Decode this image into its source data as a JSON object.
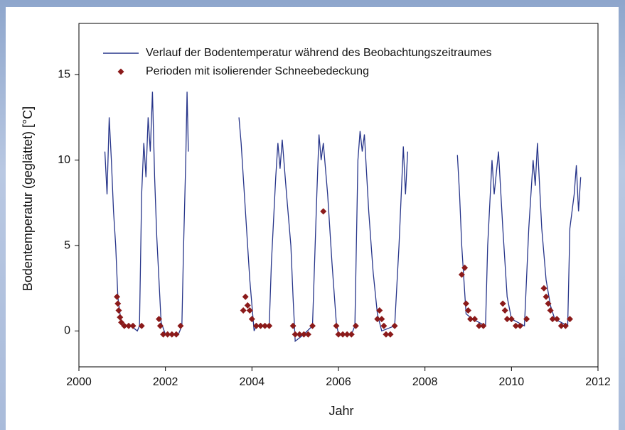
{
  "chart_data": {
    "type": "line",
    "xlabel": "Jahr",
    "ylabel": "Bodentemperatur (geglättet) [°C]",
    "xlim": [
      2000,
      2012
    ],
    "xticks": [
      2000,
      2002,
      2004,
      2006,
      2008,
      2010,
      2012
    ],
    "ylim": [
      -2.1,
      18
    ],
    "yticks": [
      0,
      5,
      10,
      15
    ],
    "legend": "top",
    "series": [
      {
        "name": "Verlauf der Bodentemperatur während des Beobachtungszeitraumes",
        "color": "#27358a",
        "type": "line",
        "x": [
          2000.6,
          2000.65,
          2000.7,
          2000.75,
          2000.8,
          2000.85,
          2000.9,
          2000.95,
          2001.0,
          2001.2,
          2001.35,
          2001.4,
          2001.45,
          2001.5,
          2001.55,
          2001.6,
          2001.65,
          2001.7,
          2001.75,
          2001.8,
          2001.85,
          2001.9,
          2002.0,
          2002.3,
          2002.38,
          2002.42,
          2002.47,
          2002.5,
          2002.53,
          2003.1,
          2003.7,
          2003.75,
          2003.85,
          2003.95,
          2004.05,
          2004.1,
          2004.4,
          2004.45,
          2004.55,
          2004.6,
          2004.65,
          2004.7,
          2004.8,
          2004.9,
          2004.95,
          2005.0,
          2005.2,
          2005.4,
          2005.5,
          2005.55,
          2005.6,
          2005.65,
          2005.75,
          2005.85,
          2005.95,
          2006.0,
          2006.3,
          2006.38,
          2006.45,
          2006.5,
          2006.55,
          2006.6,
          2006.7,
          2006.8,
          2006.9,
          2007.0,
          2007.3,
          2007.4,
          2007.5,
          2007.55,
          2007.6,
          2008.2,
          2008.75,
          2008.8,
          2008.85,
          2008.9,
          2008.95,
          2009.1,
          2009.4,
          2009.45,
          2009.55,
          2009.6,
          2009.7,
          2009.8,
          2009.9,
          2010.0,
          2010.3,
          2010.4,
          2010.5,
          2010.55,
          2010.6,
          2010.7,
          2010.8,
          2010.9,
          2011.0,
          2011.3,
          2011.35,
          2011.45,
          2011.5,
          2011.55,
          2011.6
        ],
        "values": [
          10.5,
          8,
          12.5,
          10,
          7,
          5,
          2,
          1,
          0.3,
          0.3,
          0,
          0.3,
          8,
          11,
          9,
          12.5,
          10.5,
          14,
          9,
          5.5,
          3,
          0.5,
          -0.2,
          -0.2,
          0.3,
          5,
          10,
          14,
          10.5,
          null,
          12.5,
          11,
          7,
          3,
          0,
          0.3,
          0.3,
          4,
          9,
          11,
          9.5,
          11.2,
          8,
          5,
          2,
          -0.6,
          -0.2,
          0.3,
          8,
          11.5,
          10,
          11,
          8,
          4,
          0.5,
          -0.2,
          -0.2,
          0.3,
          10,
          11.7,
          10.5,
          11.5,
          7,
          3.5,
          1,
          0,
          0.3,
          5,
          10.8,
          8,
          10.5,
          null,
          10.3,
          8,
          5,
          3,
          1,
          0.7,
          0.3,
          5,
          10,
          8,
          10.5,
          6,
          2,
          0.7,
          0.3,
          6,
          10,
          8.5,
          11,
          6,
          3,
          1.5,
          0.7,
          0.3,
          6,
          8,
          9.7,
          7,
          9
        ]
      },
      {
        "name": "Perioden mit isolierender Schneebedeckung",
        "color": "#8b1a1a",
        "type": "scatter",
        "x": [
          2000.88,
          2000.9,
          2000.92,
          2000.95,
          2000.98,
          2001.05,
          2001.15,
          2001.25,
          2001.45,
          2001.85,
          2001.88,
          2001.95,
          2002.05,
          2002.15,
          2002.25,
          2002.35,
          2003.8,
          2003.85,
          2003.9,
          2003.95,
          2004.0,
          2004.1,
          2004.2,
          2004.3,
          2004.4,
          2004.95,
          2005.0,
          2005.1,
          2005.2,
          2005.3,
          2005.4,
          2005.65,
          2005.95,
          2006.0,
          2006.1,
          2006.2,
          2006.3,
          2006.4,
          2006.9,
          2006.95,
          2007.0,
          2007.05,
          2007.1,
          2007.2,
          2007.3,
          2008.85,
          2008.92,
          2008.95,
          2009.0,
          2009.05,
          2009.15,
          2009.25,
          2009.35,
          2009.8,
          2009.85,
          2009.9,
          2010.0,
          2010.1,
          2010.2,
          2010.35,
          2010.75,
          2010.8,
          2010.85,
          2010.9,
          2010.95,
          2011.05,
          2011.15,
          2011.25,
          2011.35
        ],
        "values": [
          2,
          1.6,
          1.2,
          0.8,
          0.5,
          0.3,
          0.3,
          0.3,
          0.3,
          0.7,
          0.3,
          -0.2,
          -0.2,
          -0.2,
          -0.2,
          0.3,
          1.2,
          2,
          1.5,
          1.2,
          0.7,
          0.3,
          0.3,
          0.3,
          0.3,
          0.3,
          -0.2,
          -0.2,
          -0.2,
          -0.2,
          0.3,
          7,
          0.3,
          -0.2,
          -0.2,
          -0.2,
          -0.2,
          0.3,
          0.7,
          1.2,
          0.7,
          0.3,
          -0.2,
          -0.2,
          0.3,
          3.3,
          3.7,
          1.6,
          1.2,
          0.7,
          0.7,
          0.3,
          0.3,
          1.6,
          1.2,
          0.7,
          0.7,
          0.3,
          0.3,
          0.7,
          2.5,
          2,
          1.6,
          1.2,
          0.7,
          0.7,
          0.3,
          0.3,
          0.7
        ]
      }
    ]
  }
}
